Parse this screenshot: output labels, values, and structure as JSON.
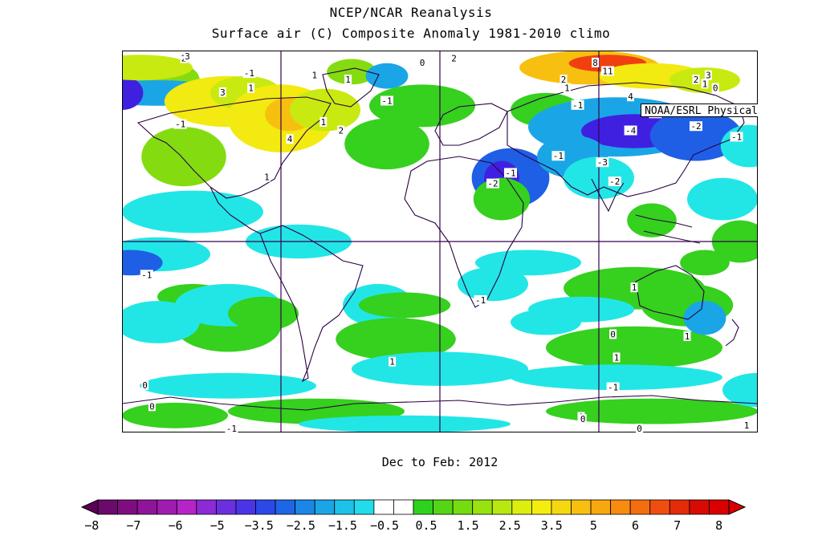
{
  "header": {
    "title": "NCEP/NCAR Reanalysis",
    "subtitle": "Surface air (C) Composite Anomaly 1981-2010 climo"
  },
  "credit": "NOAA/ESRL Physical Sciences Division",
  "period": "Dec to Feb: 2012",
  "colors": {
    "neg_8": "#5a0058",
    "neg_7": "#7a0a7a",
    "neg_6": "#9a1aa0",
    "neg_5": "#8a2ad0",
    "neg_35": "#4020e0",
    "neg_25": "#1e5fe6",
    "neg_15": "#1aa6e6",
    "neg_05": "#22e6e6",
    "zero": "#ffffff",
    "pos_05": "#36d01e",
    "pos_15": "#84dc10",
    "pos_25": "#c8ea10",
    "pos_35": "#f2ea10",
    "pos_5": "#f7c010",
    "pos_6": "#f78010",
    "pos_7": "#f04010",
    "pos_8": "#d80000",
    "land_outline": "#2a0040",
    "grid": "#3a0050"
  },
  "colorbar": {
    "ticks": [
      "-8",
      "-7",
      "-6",
      "-5",
      "-3.5",
      "-2.5",
      "-1.5",
      "-0.5",
      "0.5",
      "1.5",
      "2.5",
      "3.5",
      "5",
      "6",
      "7",
      "8"
    ],
    "colors": [
      "#6a0a6a",
      "#7e0e80",
      "#90149a",
      "#a01cb0",
      "#b624c8",
      "#8c2ad6",
      "#6a30e0",
      "#4a34e6",
      "#2c48e8",
      "#1e66e6",
      "#1c86e6",
      "#1aa6e6",
      "#1ec2e8",
      "#22dcea",
      "#ffffff",
      "#ffffff",
      "#2ed21e",
      "#54d616",
      "#76dc12",
      "#98e210",
      "#b8e810",
      "#dcee10",
      "#f4ee10",
      "#f6d810",
      "#f7c010",
      "#f7a810",
      "#f78c10",
      "#f46e10",
      "#f04e10",
      "#e42c0a",
      "#d80a04",
      "#d80000"
    ]
  },
  "chart_data": {
    "type": "contour-map",
    "title": "NCEP/NCAR Reanalysis",
    "subtitle": "Surface air (C) Composite Anomaly 1981-2010 climo",
    "variable": "Surface air temperature anomaly",
    "units": "C",
    "period": "Dec to Feb: 2012",
    "levels": [
      -8,
      -7,
      -6,
      -5,
      -3.5,
      -2.5,
      -1.5,
      -0.5,
      0.5,
      1.5,
      2.5,
      3.5,
      5,
      6,
      7,
      8
    ],
    "contour_labels": [
      {
        "lon": 35,
        "lat": 86,
        "label": "2"
      },
      {
        "lon": 37,
        "lat": 88,
        "label": "3"
      },
      {
        "lon": 188,
        "lat": 86,
        "label": "2"
      },
      {
        "lon": 170,
        "lat": 84,
        "label": "0"
      },
      {
        "lon": 268,
        "lat": 84,
        "label": "8"
      },
      {
        "lon": 275,
        "lat": 80,
        "label": "11"
      },
      {
        "lon": 250,
        "lat": 76,
        "label": "2"
      },
      {
        "lon": 252,
        "lat": 72,
        "label": "1"
      },
      {
        "lon": 325,
        "lat": 76,
        "label": "2"
      },
      {
        "lon": 332,
        "lat": 78,
        "label": "3"
      },
      {
        "lon": 330,
        "lat": 74,
        "label": "1"
      },
      {
        "lon": 336,
        "lat": 72,
        "label": "0"
      },
      {
        "lon": 288,
        "lat": 68,
        "label": "4"
      },
      {
        "lon": 72,
        "lat": 79,
        "label": "-1"
      },
      {
        "lon": 109,
        "lat": 78,
        "label": "1"
      },
      {
        "lon": 73,
        "lat": 72,
        "label": "1"
      },
      {
        "lon": 57,
        "lat": 70,
        "label": "3"
      },
      {
        "lon": 128,
        "lat": 76,
        "label": "1"
      },
      {
        "lon": 150,
        "lat": 66,
        "label": "-1"
      },
      {
        "lon": 33,
        "lat": 55,
        "label": "-1"
      },
      {
        "lon": 114,
        "lat": 56,
        "label": "1"
      },
      {
        "lon": 124,
        "lat": 52,
        "label": "2"
      },
      {
        "lon": 95,
        "lat": 48,
        "label": "4"
      },
      {
        "lon": 258,
        "lat": 64,
        "label": "-1"
      },
      {
        "lon": 302,
        "lat": 60,
        "label": "-3"
      },
      {
        "lon": 288,
        "lat": 52,
        "label": "-4"
      },
      {
        "lon": 325,
        "lat": 54,
        "label": "-2"
      },
      {
        "lon": 348,
        "lat": 49,
        "label": "-1"
      },
      {
        "lon": 247,
        "lat": 40,
        "label": "-1"
      },
      {
        "lon": 272,
        "lat": 37,
        "label": "-3"
      },
      {
        "lon": 279,
        "lat": 28,
        "label": "-2"
      },
      {
        "lon": 220,
        "lat": 32,
        "label": "-1"
      },
      {
        "lon": 210,
        "lat": 27,
        "label": "-2"
      },
      {
        "lon": 82,
        "lat": 30,
        "label": "1"
      },
      {
        "lon": 14,
        "lat": -16,
        "label": "-1"
      },
      {
        "lon": 203,
        "lat": -28,
        "label": "-1"
      },
      {
        "lon": 290,
        "lat": -22,
        "label": "1"
      },
      {
        "lon": 320,
        "lat": -45,
        "label": "1"
      },
      {
        "lon": 278,
        "lat": -44,
        "label": "0"
      },
      {
        "lon": 280,
        "lat": -55,
        "label": "1"
      },
      {
        "lon": 278,
        "lat": -69,
        "label": "-1"
      },
      {
        "lon": 153,
        "lat": -57,
        "label": "1"
      },
      {
        "lon": 13,
        "lat": -68,
        "label": "0"
      },
      {
        "lon": 17,
        "lat": -78,
        "label": "0"
      },
      {
        "lon": 260,
        "lat": -83,
        "label": "1"
      },
      {
        "lon": 261,
        "lat": -84,
        "label": "0"
      },
      {
        "lon": 360,
        "lat": -87,
        "label": "1"
      },
      {
        "lon": 293,
        "lat": -90,
        "label": "0"
      },
      {
        "lon": 62,
        "lat": -90,
        "label": "-1"
      }
    ]
  }
}
